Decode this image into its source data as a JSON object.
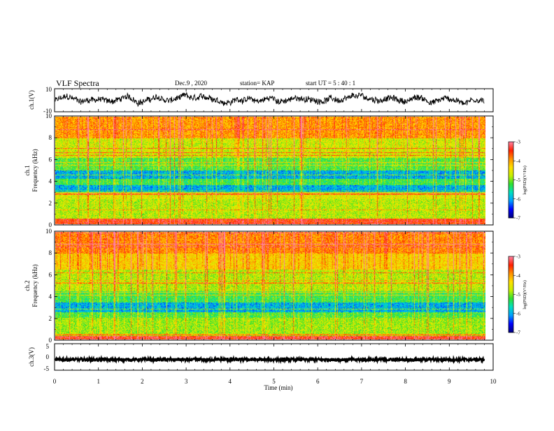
{
  "header": {
    "title": "VLF Spectra",
    "date": "Dec.9 , 2020",
    "station": "station= KAP",
    "start_ut": "start  UT =  5 : 40 : 1"
  },
  "colors": {
    "spectrogram_scale": [
      "#000080",
      "#0000ff",
      "#00a0ff",
      "#00e0c0",
      "#30e030",
      "#c8f000",
      "#ffe000",
      "#ff9000",
      "#ff2000",
      "#ff80a0",
      "#ffffff"
    ],
    "trace": "#000000"
  },
  "chart_data": [
    {
      "type": "line",
      "name": "ch1-waveform",
      "ylabel": "ch.1(V)",
      "ylim": [
        -10,
        10
      ],
      "y_ticks": [
        "10",
        "-10"
      ],
      "xlim": [
        0,
        9.8
      ],
      "description_values": "noisy broadband waveform oscillating roughly between -5 and +6 V"
    },
    {
      "type": "heatmap",
      "name": "ch1-spectrogram",
      "ylabel": "ch.1\nFrequency  (kHz)",
      "ylim": [
        0,
        10
      ],
      "y_ticks": [
        "0",
        "2",
        "4",
        "6",
        "8",
        "10"
      ],
      "colorbar": {
        "label": "log(PSD)(V²/Hz)",
        "range": [
          -7,
          -3
        ],
        "ticks": [
          "-3",
          "-4",
          "-5",
          "-6",
          "-7"
        ]
      },
      "bands_khz": [
        {
          "from": 0,
          "to": 0.5,
          "level": -3.5
        },
        {
          "from": 0.5,
          "to": 2.3,
          "level": -4.8
        },
        {
          "from": 2.3,
          "to": 3.0,
          "level": -4.6
        },
        {
          "from": 3.0,
          "to": 3.6,
          "level": -6.0
        },
        {
          "from": 3.6,
          "to": 4.2,
          "level": -5.3
        },
        {
          "from": 4.2,
          "to": 5.0,
          "level": -6.0
        },
        {
          "from": 5.0,
          "to": 6.2,
          "level": -5.2
        },
        {
          "from": 6.2,
          "to": 8.0,
          "level": -4.7
        },
        {
          "from": 8.0,
          "to": 10.0,
          "level": -4.0
        }
      ]
    },
    {
      "type": "heatmap",
      "name": "ch2-spectrogram",
      "ylabel": "ch.2\nFrequency  (kHz)",
      "ylim": [
        0,
        10
      ],
      "y_ticks": [
        "0",
        "2",
        "4",
        "6",
        "8",
        "10"
      ],
      "colorbar": {
        "label": "log(PSD)(V²/Hz)",
        "range": [
          -7,
          -3
        ],
        "ticks": [
          "-3",
          "-4",
          "-5",
          "-6",
          "-7"
        ]
      },
      "bands_khz": [
        {
          "from": 0,
          "to": 0.3,
          "level": -3.4
        },
        {
          "from": 0.3,
          "to": 2.0,
          "level": -4.9
        },
        {
          "from": 2.0,
          "to": 2.5,
          "level": -5.2
        },
        {
          "from": 2.5,
          "to": 3.4,
          "level": -6.0
        },
        {
          "from": 3.4,
          "to": 4.5,
          "level": -5.3
        },
        {
          "from": 4.5,
          "to": 6.5,
          "level": -4.8
        },
        {
          "from": 6.5,
          "to": 8.0,
          "level": -4.3
        },
        {
          "from": 8.0,
          "to": 10.0,
          "level": -3.9
        }
      ]
    },
    {
      "type": "line",
      "name": "ch3-waveform",
      "ylabel": "ch.3(V)",
      "ylim": [
        -5,
        5
      ],
      "y_ticks": [
        "5",
        "0",
        "-5"
      ],
      "xlim": [
        0,
        9.8
      ],
      "description_values": "thick band centered near -1 V, amplitude about ±0.5 V"
    }
  ],
  "x_axis": {
    "label": "Time  (min)",
    "ticks": [
      "0",
      "1",
      "2",
      "3",
      "4",
      "5",
      "6",
      "7",
      "8",
      "9",
      "10"
    ],
    "range": [
      0,
      10
    ]
  }
}
